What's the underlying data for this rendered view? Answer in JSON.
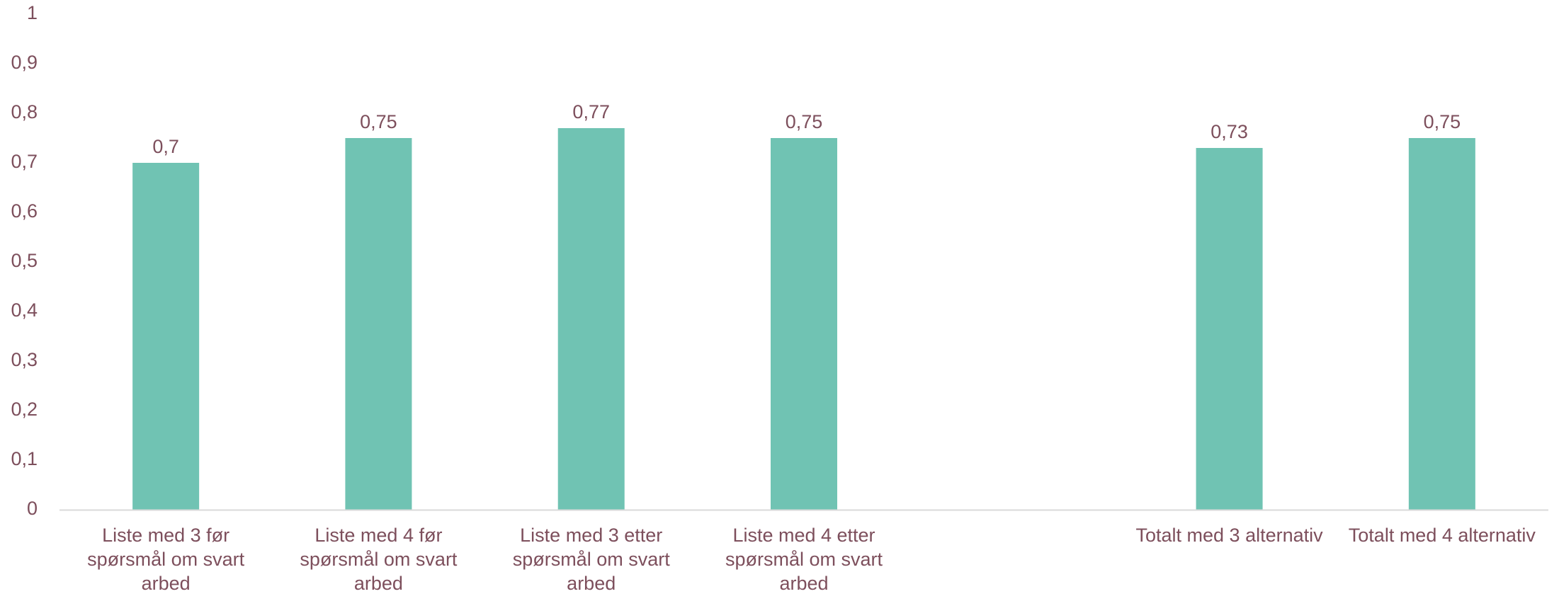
{
  "chart_data": {
    "type": "bar",
    "title": "",
    "xlabel": "",
    "ylabel": "",
    "ylim": [
      0,
      1
    ],
    "yticks": [
      "0",
      "0,1",
      "0,2",
      "0,3",
      "0,4",
      "0,5",
      "0,6",
      "0,7",
      "0,8",
      "0,9",
      "1"
    ],
    "grid": false,
    "legend": "none",
    "categories": [
      [
        "Liste med 3 før",
        "spørsmål om svart",
        "arbed"
      ],
      [
        "Liste med 4 før",
        "spørsmål om svart",
        "arbed"
      ],
      [
        "Liste med 3 etter",
        "spørsmål om svart",
        "arbed"
      ],
      [
        "Liste med 4 etter",
        "spørsmål om svart",
        "arbed"
      ],
      [
        ""
      ],
      [
        "Totalt med 3 alternativ"
      ],
      [
        "Totalt med 4 alternativ"
      ]
    ],
    "values": [
      0.7,
      0.75,
      0.77,
      0.75,
      null,
      0.73,
      0.75
    ],
    "data_labels": [
      "0,7",
      "0,75",
      "0,77",
      "0,75",
      "",
      "0,73",
      "0,75"
    ],
    "colors": {
      "bar": "#70c3b3",
      "text": "#7d4f5c",
      "axis": "#d9d9d9"
    }
  }
}
